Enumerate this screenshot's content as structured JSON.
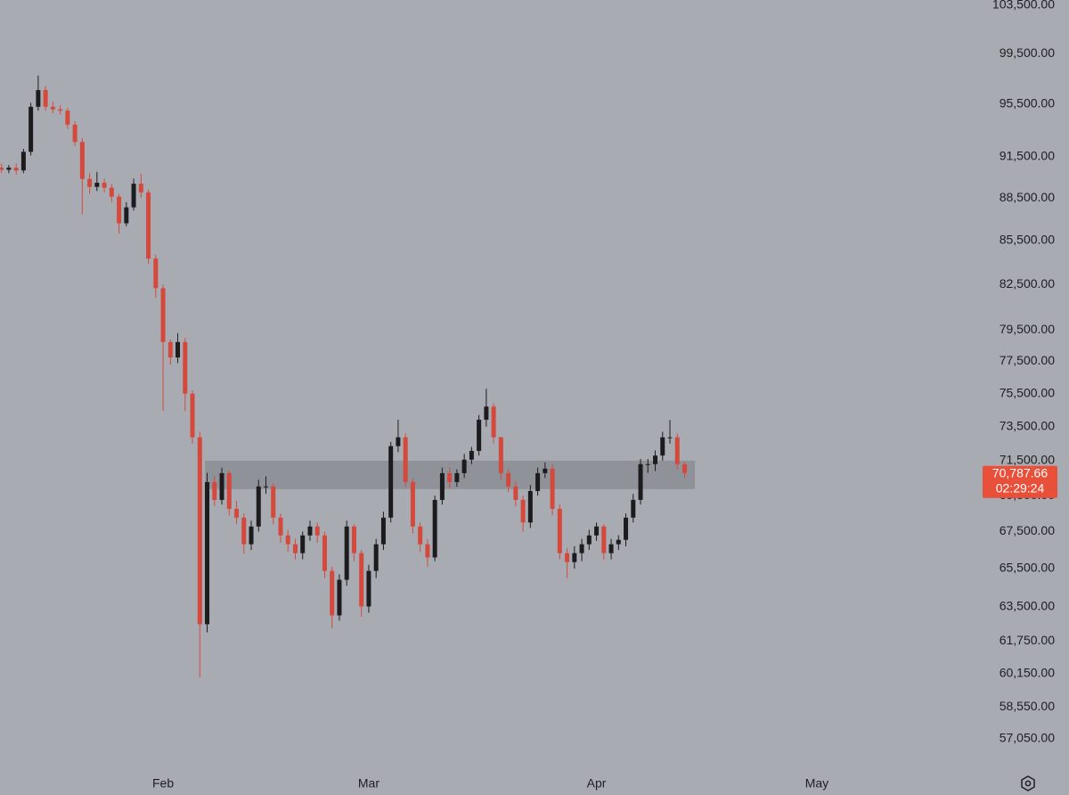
{
  "chart_data": {
    "type": "candlestick",
    "log_scale": true,
    "up_color": "#1c1c1e",
    "down_color": "#d4493c",
    "background": "#a9abb3",
    "x": [
      0,
      1,
      2,
      3,
      4,
      5,
      6,
      7,
      8,
      9,
      10,
      11,
      12,
      13,
      14,
      15,
      16,
      17,
      18,
      19,
      20,
      21,
      22,
      23,
      24,
      25,
      26,
      27,
      28,
      29,
      30,
      31,
      32,
      33,
      34,
      35,
      36,
      37,
      38,
      39,
      40,
      41,
      42,
      43,
      44,
      45,
      46,
      47,
      48,
      49,
      50,
      51,
      52,
      53,
      54,
      55,
      56,
      57,
      58,
      59,
      60,
      61,
      62,
      63,
      64,
      65,
      66,
      67,
      68,
      69,
      70,
      71,
      72,
      73,
      74,
      75,
      76,
      77,
      78,
      79,
      80,
      81,
      82,
      83,
      84,
      85,
      86,
      87,
      88,
      89,
      90,
      91,
      92,
      93
    ],
    "open": [
      90700,
      90550,
      90700,
      90500,
      91880,
      95300,
      96600,
      95300,
      95100,
      95000,
      93930,
      92620,
      89880,
      89300,
      89600,
      89240,
      88590,
      86700,
      87830,
      89530,
      88900,
      84250,
      82250,
      78730,
      77750,
      78730,
      75500,
      72870,
      62610,
      70270,
      69260,
      70780,
      68760,
      68270,
      66810,
      67780,
      70020,
      70020,
      68270,
      67290,
      66810,
      66330,
      67290,
      67780,
      67290,
      65380,
      63060,
      64910,
      67780,
      66330,
      63520,
      65380,
      66810,
      68270,
      72350,
      72870,
      70270,
      67780,
      66810,
      66100,
      69260,
      70780,
      70270,
      70780,
      71560,
      72070,
      73920,
      74710,
      72870,
      70780,
      70020,
      69260,
      68000,
      69760,
      70780,
      71040,
      68760,
      66330,
      65850,
      66330,
      66810,
      67290,
      67780,
      66330,
      66810,
      67050,
      68270,
      69260,
      71300,
      71300,
      71800,
      72870,
      72870,
      71300
    ],
    "high": [
      91000,
      90900,
      91000,
      92100,
      95600,
      97750,
      96900,
      95700,
      95400,
      95200,
      94200,
      92900,
      90300,
      90400,
      89900,
      89500,
      88800,
      88200,
      89900,
      90240,
      89100,
      84500,
      82500,
      78900,
      79300,
      79000,
      75700,
      73200,
      70800,
      70600,
      71100,
      70900,
      69200,
      68500,
      68100,
      70400,
      70600,
      70200,
      68500,
      67600,
      67100,
      67500,
      68100,
      68000,
      67500,
      65600,
      65200,
      68100,
      67900,
      66500,
      65700,
      67100,
      68600,
      72600,
      73920,
      73100,
      70500,
      68000,
      67100,
      69500,
      71100,
      71100,
      71000,
      71900,
      72300,
      74200,
      75800,
      74900,
      72900,
      71000,
      70300,
      69500,
      70100,
      71100,
      71400,
      71300,
      69000,
      66600,
      66700,
      67100,
      67600,
      68000,
      67900,
      67100,
      67300,
      68500,
      69600,
      71600,
      71600,
      72100,
      73200,
      73900,
      73100,
      71400
    ],
    "low": [
      90300,
      90300,
      90200,
      90300,
      91600,
      95000,
      95000,
      94800,
      94700,
      93600,
      92300,
      87330,
      88800,
      89000,
      88900,
      88200,
      85960,
      86500,
      87600,
      88500,
      83900,
      81600,
      74440,
      77300,
      77400,
      74440,
      72500,
      59960,
      62200,
      68900,
      69000,
      68400,
      67900,
      66300,
      66500,
      67500,
      69600,
      67900,
      66900,
      66400,
      66000,
      66000,
      67000,
      66900,
      65000,
      62400,
      62800,
      64600,
      65900,
      63000,
      63200,
      65000,
      66500,
      68000,
      72000,
      70000,
      67400,
      66400,
      65600,
      65900,
      69000,
      69900,
      70000,
      70500,
      71300,
      71800,
      73500,
      72500,
      70400,
      69700,
      68900,
      67500,
      67700,
      69500,
      70500,
      68400,
      66000,
      65000,
      65500,
      65900,
      66500,
      67000,
      66000,
      66000,
      66500,
      66700,
      68000,
      69000,
      70800,
      70900,
      71500,
      72500,
      71000,
      70500
    ],
    "close": [
      90550,
      90700,
      90500,
      91880,
      95300,
      96600,
      95300,
      95100,
      95000,
      93930,
      92620,
      89880,
      89300,
      89600,
      89240,
      88590,
      86700,
      87830,
      89530,
      88900,
      84250,
      82250,
      78730,
      77750,
      78730,
      75500,
      72870,
      62610,
      70270,
      69260,
      70780,
      68760,
      68270,
      66810,
      67780,
      70020,
      70020,
      68270,
      67290,
      66810,
      66330,
      67290,
      67780,
      67290,
      65380,
      63060,
      64910,
      67780,
      66330,
      63520,
      65380,
      66810,
      68270,
      72350,
      72870,
      70270,
      67780,
      66810,
      66100,
      69260,
      70780,
      70270,
      70780,
      71560,
      72070,
      73920,
      74710,
      72870,
      70780,
      70020,
      69260,
      68000,
      69760,
      70780,
      71040,
      68760,
      66330,
      65850,
      66330,
      66810,
      67290,
      67780,
      66330,
      66810,
      67050,
      68270,
      69260,
      71300,
      71300,
      71800,
      72870,
      72870,
      71300,
      70788
    ],
    "xlim": [
      -0.2,
      133.2
    ],
    "xticks": [
      {
        "value": 22,
        "label": "Feb"
      },
      {
        "value": 50,
        "label": "Mar"
      },
      {
        "value": 81,
        "label": "Apr"
      },
      {
        "value": 111,
        "label": "May"
      }
    ],
    "ylim": [
      55580,
      103930
    ],
    "yticks": [
      {
        "value": 103500,
        "label": "103,500.00"
      },
      {
        "value": 99500,
        "label": "99,500.00"
      },
      {
        "value": 95500,
        "label": "95,500.00"
      },
      {
        "value": 91500,
        "label": "91,500.00"
      },
      {
        "value": 88500,
        "label": "88,500.00"
      },
      {
        "value": 85500,
        "label": "85,500.00"
      },
      {
        "value": 82500,
        "label": "82,500.00"
      },
      {
        "value": 79500,
        "label": "79,500.00"
      },
      {
        "value": 77500,
        "label": "77,500.00"
      },
      {
        "value": 75500,
        "label": "75,500.00"
      },
      {
        "value": 73500,
        "label": "73,500.00"
      },
      {
        "value": 71500,
        "label": "71,500.00"
      },
      {
        "value": 69500,
        "label": "69,500.00"
      },
      {
        "value": 67500,
        "label": "67,500.00"
      },
      {
        "value": 65500,
        "label": "65,500.00"
      },
      {
        "value": 63500,
        "label": "63,500.00"
      },
      {
        "value": 61750,
        "label": "61,750.00"
      },
      {
        "value": 60150,
        "label": "60,150.00"
      },
      {
        "value": 58550,
        "label": "58,550.00"
      },
      {
        "value": 57050,
        "label": "57,050.00"
      }
    ],
    "zone": {
      "low": 69870,
      "high": 71500,
      "start": 27.7,
      "end": 94.4,
      "color": "#8b8d94"
    },
    "current_price": {
      "value": 70787.66,
      "label": "70,787.66",
      "countdown": "02:29:24",
      "color": "#e8503a"
    }
  }
}
